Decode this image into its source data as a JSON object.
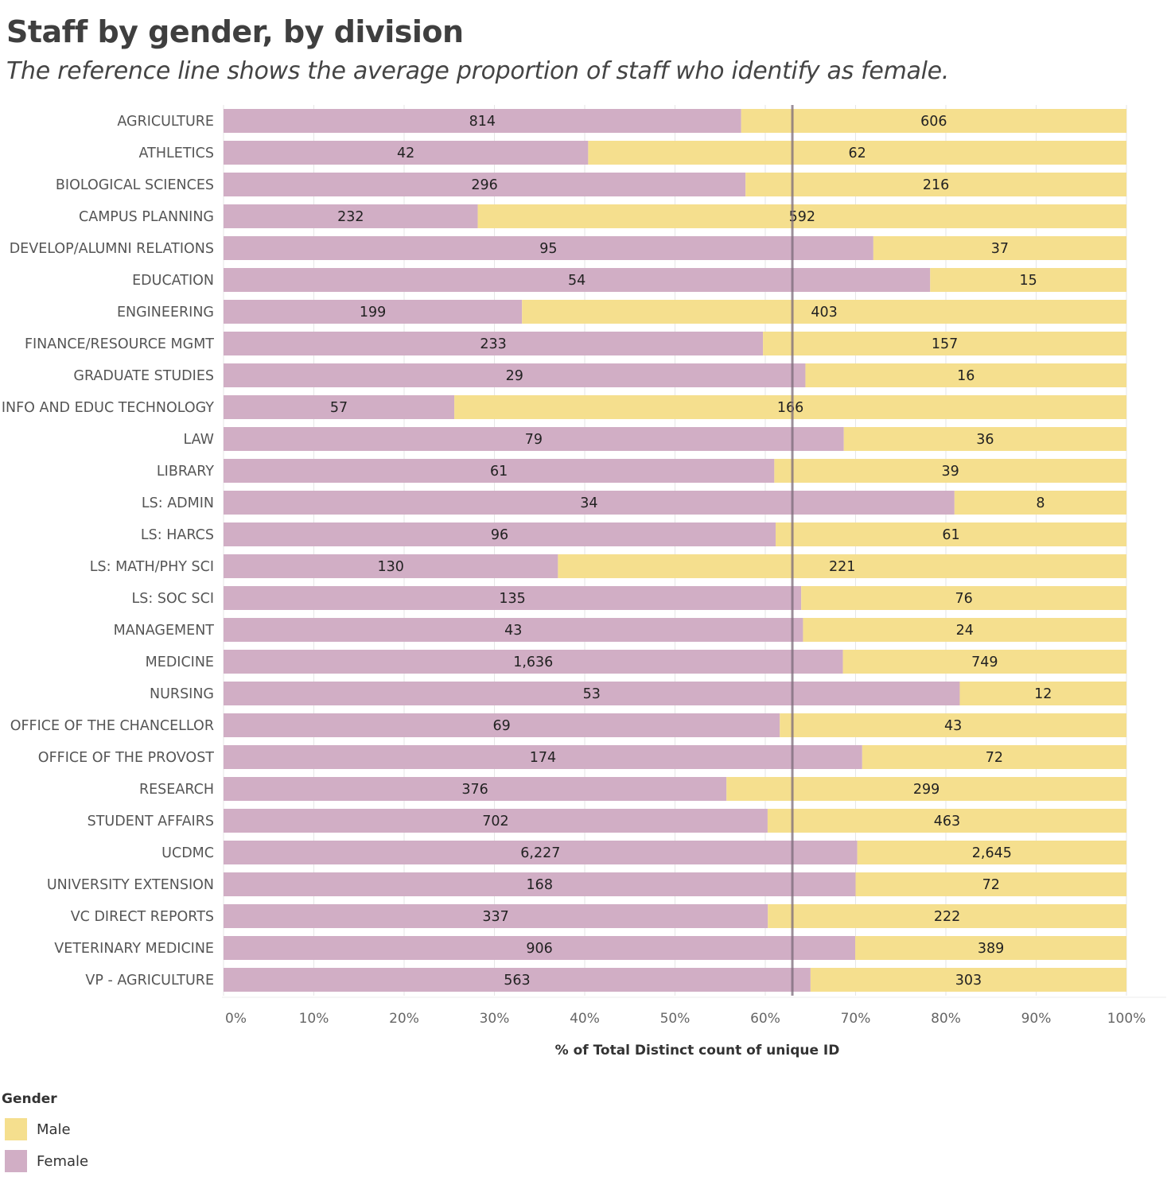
{
  "title": "Staff by gender, by division",
  "subtitle": "The reference line shows the average proportion of staff who identify as female.",
  "colors": {
    "female": "#d1aec5",
    "male": "#f5df8e",
    "reference_line": "#7a6a78",
    "grid": "#e6e6e6"
  },
  "legend": {
    "title": "Gender",
    "items": [
      {
        "label": "Male",
        "color": "#f5df8e"
      },
      {
        "label": "Female",
        "color": "#d1aec5"
      }
    ]
  },
  "chart_data": {
    "type": "bar",
    "orientation": "horizontal",
    "stacked": "percent",
    "title": "Staff by gender, by division",
    "xlabel": "% of Total Distinct count of unique ID",
    "ylabel": "",
    "xlim": [
      0,
      100
    ],
    "x_ticks": [
      "0%",
      "10%",
      "20%",
      "30%",
      "40%",
      "50%",
      "60%",
      "70%",
      "80%",
      "90%",
      "100%"
    ],
    "grid": true,
    "reference_line_value": 63,
    "categories": [
      "AGRICULTURE",
      "ATHLETICS",
      "BIOLOGICAL SCIENCES",
      "CAMPUS PLANNING",
      "DEVELOP/ALUMNI RELATIONS",
      "EDUCATION",
      "ENGINEERING",
      "FINANCE/RESOURCE MGMT",
      "GRADUATE STUDIES",
      "INFO AND EDUC TECHNOLOGY",
      "LAW",
      "LIBRARY",
      "LS: ADMIN",
      "LS: HARCS",
      "LS: MATH/PHY SCI",
      "LS: SOC SCI",
      "MANAGEMENT",
      "MEDICINE",
      "NURSING",
      "OFFICE OF THE CHANCELLOR",
      "OFFICE OF THE PROVOST",
      "RESEARCH",
      "STUDENT AFFAIRS",
      "UCDMC",
      "UNIVERSITY EXTENSION",
      "VC DIRECT REPORTS",
      "VETERINARY MEDICINE",
      "VP - AGRICULTURE"
    ],
    "series": [
      {
        "name": "Female",
        "values": [
          814,
          42,
          296,
          232,
          95,
          54,
          199,
          233,
          29,
          57,
          79,
          61,
          34,
          96,
          130,
          135,
          43,
          1636,
          53,
          69,
          174,
          376,
          702,
          6227,
          168,
          337,
          906,
          563
        ],
        "labels": [
          "814",
          "42",
          "296",
          "232",
          "95",
          "54",
          "199",
          "233",
          "29",
          "57",
          "79",
          "61",
          "34",
          "96",
          "130",
          "135",
          "43",
          "1,636",
          "53",
          "69",
          "174",
          "376",
          "702",
          "6,227",
          "168",
          "337",
          "906",
          "563"
        ]
      },
      {
        "name": "Male",
        "values": [
          606,
          62,
          216,
          592,
          37,
          15,
          403,
          157,
          16,
          166,
          36,
          39,
          8,
          61,
          221,
          76,
          24,
          749,
          12,
          43,
          72,
          299,
          463,
          2645,
          72,
          222,
          389,
          303
        ],
        "labels": [
          "606",
          "62",
          "216",
          "592",
          "37",
          "15",
          "403",
          "157",
          "16",
          "166",
          "36",
          "39",
          "8",
          "61",
          "221",
          "76",
          "24",
          "749",
          "12",
          "43",
          "72",
          "299",
          "463",
          "2,645",
          "72",
          "222",
          "389",
          "303"
        ]
      }
    ]
  }
}
